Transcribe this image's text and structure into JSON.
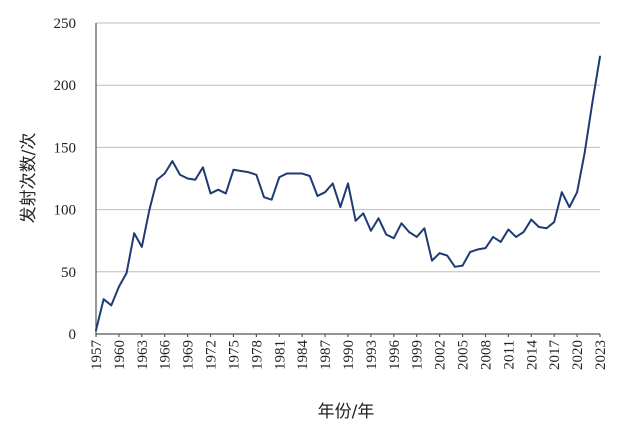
{
  "chart_data": {
    "type": "line",
    "xlabel": "年份/年",
    "ylabel": "发射次数/次",
    "ylim": [
      0,
      250
    ],
    "xlim": [
      1957,
      2023
    ],
    "grid": true,
    "legend": "none",
    "yticks": [
      0,
      50,
      100,
      150,
      200,
      250
    ],
    "xticks": [
      1957,
      1960,
      1963,
      1966,
      1969,
      1972,
      1975,
      1978,
      1981,
      1984,
      1987,
      1990,
      1993,
      1996,
      1999,
      2002,
      2005,
      2008,
      2011,
      2014,
      2017,
      2020,
      2023
    ],
    "line_color": "#1f3b73",
    "series": [
      {
        "x": [
          1957,
          1958,
          1959,
          1960,
          1961,
          1962,
          1963,
          1964,
          1965,
          1966,
          1967,
          1968,
          1969,
          1970,
          1971,
          1972,
          1973,
          1974,
          1975,
          1976,
          1977,
          1978,
          1979,
          1980,
          1981,
          1982,
          1983,
          1984,
          1985,
          1986,
          1987,
          1988,
          1989,
          1990,
          1991,
          1992,
          1993,
          1994,
          1995,
          1996,
          1997,
          1998,
          1999,
          2000,
          2001,
          2002,
          2003,
          2004,
          2005,
          2006,
          2007,
          2008,
          2009,
          2010,
          2011,
          2012,
          2013,
          2014,
          2015,
          2016,
          2017,
          2018,
          2019,
          2020,
          2021,
          2022,
          2023
        ],
        "values": [
          3,
          28,
          23,
          38,
          49,
          81,
          70,
          100,
          124,
          129,
          139,
          128,
          125,
          124,
          134,
          113,
          116,
          113,
          132,
          131,
          130,
          128,
          110,
          108,
          126,
          129,
          129,
          129,
          127,
          111,
          114,
          121,
          102,
          121,
          91,
          97,
          83,
          93,
          80,
          77,
          89,
          82,
          78,
          85,
          59,
          65,
          63,
          54,
          55,
          66,
          68,
          69,
          78,
          74,
          84,
          78,
          82,
          92,
          86,
          85,
          90,
          114,
          102,
          114,
          146,
          186,
          223
        ]
      }
    ]
  }
}
